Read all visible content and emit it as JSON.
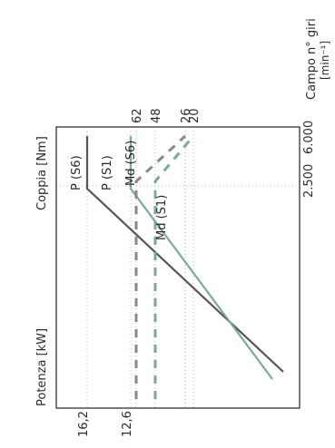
{
  "chart_data": {
    "type": "line",
    "orientation": "rotated-90-ccw",
    "xlabel": "Campo n° giri",
    "xunit": "[min⁻¹]",
    "xticks": [
      "2.500",
      "6.000"
    ],
    "ylabel_power": "Potenza [kW]",
    "ylabel_torque": "Coppia [Nm]",
    "power_ticks": [
      "16,2",
      "12,6"
    ],
    "torque_ticks": [
      "62",
      "48",
      "26",
      "20"
    ],
    "series": [
      {
        "name": "P (S6)",
        "style": "solid",
        "color": "#555555",
        "x": [
          0,
          2500,
          6000
        ],
        "y": [
          0,
          16.2,
          16.2
        ]
      },
      {
        "name": "P (S1)",
        "style": "solid",
        "color": "#7aa7a0",
        "x": [
          0,
          2500,
          6000
        ],
        "y": [
          0,
          12.6,
          12.6
        ]
      },
      {
        "name": "Md (S6)",
        "style": "dashed",
        "color": "#888888",
        "x": [
          0,
          2500,
          6000
        ],
        "y": [
          62,
          62,
          26
        ]
      },
      {
        "name": "Md (S1)",
        "style": "dashed",
        "color": "#7aa7a0",
        "x": [
          0,
          2500,
          6000
        ],
        "y": [
          48,
          48,
          20
        ]
      }
    ],
    "grid": true
  }
}
